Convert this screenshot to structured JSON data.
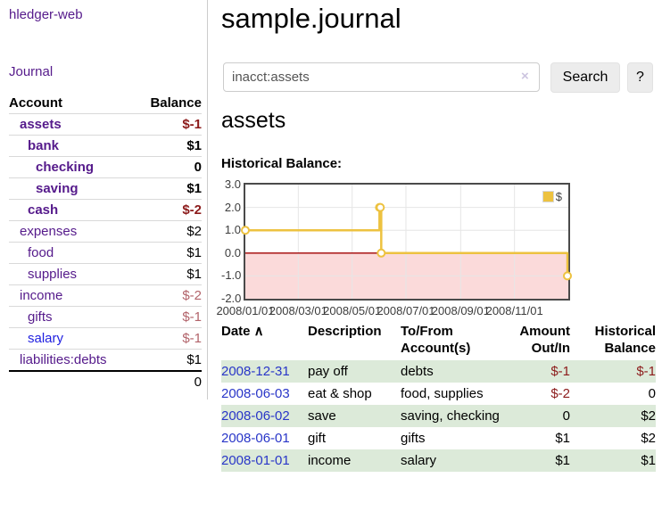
{
  "app": {
    "title": "hledger-web"
  },
  "sidebar": {
    "nav_journal": "Journal",
    "accounts": {
      "headers": {
        "account": "Account",
        "balance": "Balance"
      },
      "rows": [
        {
          "account": "assets",
          "balance": "$-1",
          "depth": 1,
          "bold": true,
          "neg": true,
          "blue": false
        },
        {
          "account": "bank",
          "balance": "$1",
          "depth": 2,
          "bold": true,
          "neg": false,
          "blue": false
        },
        {
          "account": "checking",
          "balance": "0",
          "depth": 3,
          "bold": true,
          "neg": false,
          "blue": false
        },
        {
          "account": "saving",
          "balance": "$1",
          "depth": 3,
          "bold": true,
          "neg": false,
          "blue": false
        },
        {
          "account": "cash",
          "balance": "$-2",
          "depth": 2,
          "bold": true,
          "neg": true,
          "blue": false
        },
        {
          "account": "expenses",
          "balance": "$2",
          "depth": 1,
          "bold": false,
          "neg": false,
          "blue": false
        },
        {
          "account": "food",
          "balance": "$1",
          "depth": 2,
          "bold": false,
          "neg": false,
          "blue": false
        },
        {
          "account": "supplies",
          "balance": "$1",
          "depth": 2,
          "bold": false,
          "neg": false,
          "blue": false
        },
        {
          "account": "income",
          "balance": "$-2",
          "depth": 1,
          "bold": false,
          "neg": true,
          "blue": false
        },
        {
          "account": "gifts",
          "balance": "$-1",
          "depth": 2,
          "bold": false,
          "neg": true,
          "blue": false
        },
        {
          "account": "salary",
          "balance": "$-1",
          "depth": 2,
          "bold": false,
          "neg": true,
          "blue": true
        },
        {
          "account": "liabilities:debts",
          "balance": "$1",
          "depth": 1,
          "bold": false,
          "neg": false,
          "blue": false
        }
      ],
      "total": "0"
    }
  },
  "main": {
    "title": "sample.journal",
    "search": {
      "value": "inacct:assets",
      "clear_icon": "×",
      "search_button": "Search",
      "help_button": "?"
    },
    "account_heading": "assets",
    "chart_label": "Historical Balance:"
  },
  "chart_data": {
    "type": "line",
    "step": true,
    "title": "Historical Balance of assets",
    "series": [
      {
        "name": "$",
        "color": "#edc240",
        "points": [
          [
            "2008-01-01",
            1
          ],
          [
            "2008-06-01",
            2
          ],
          [
            "2008-06-02",
            2
          ],
          [
            "2008-06-03",
            0
          ],
          [
            "2008-12-31",
            -1
          ]
        ]
      }
    ],
    "xrange": [
      "2008-01-01",
      "2009-01-01"
    ],
    "ylim": [
      -2,
      3
    ],
    "yticks": [
      "3.0",
      "2.0",
      "1.0",
      "0.0",
      "-1.0",
      "-2.0"
    ],
    "ytick_values": [
      3,
      2,
      1,
      0,
      -1,
      -2
    ],
    "xticks": [
      "2008/01/01",
      "2008/03/01",
      "2008/05/01",
      "2008/07/01",
      "2008/09/01",
      "2008/11/01"
    ],
    "grid_color": "#e6e6e6",
    "border_color": "#4a4a4a",
    "zero_line_color": "#a00000",
    "negative_fill": "#fbdada",
    "marker_fill": "#ffffff",
    "legend": {
      "label": "$",
      "position": "top-right"
    }
  },
  "register": {
    "headers": [
      {
        "label": "Date",
        "sort_icon": "∧",
        "align": "left"
      },
      {
        "label": "Description",
        "align": "left"
      },
      {
        "label": "To/From Account(s)",
        "align": "left"
      },
      {
        "label": "Amount Out/In",
        "align": "right"
      },
      {
        "label": "Historical Balance",
        "align": "right"
      }
    ],
    "rows": [
      {
        "date": "2008-12-31",
        "description": "pay off",
        "accounts": "debts",
        "amount": "$-1",
        "balance": "$-1",
        "amount_neg": true,
        "balance_neg": true
      },
      {
        "date": "2008-06-03",
        "description": "eat & shop",
        "accounts": "food, supplies",
        "amount": "$-2",
        "balance": "0",
        "amount_neg": true,
        "balance_neg": false
      },
      {
        "date": "2008-06-02",
        "description": "save",
        "accounts": "saving, checking",
        "amount": "0",
        "balance": "$2",
        "amount_neg": false,
        "balance_neg": false
      },
      {
        "date": "2008-06-01",
        "description": "gift",
        "accounts": "gifts",
        "amount": "$1",
        "balance": "$2",
        "amount_neg": false,
        "balance_neg": false
      },
      {
        "date": "2008-01-01",
        "description": "income",
        "accounts": "salary",
        "amount": "$1",
        "balance": "$1",
        "amount_neg": false,
        "balance_neg": false
      }
    ]
  }
}
